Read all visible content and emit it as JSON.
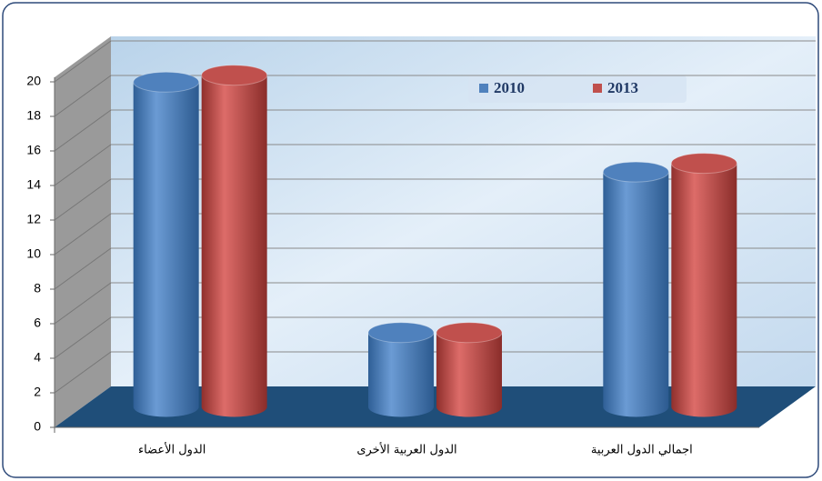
{
  "chart_data": {
    "type": "bar3d",
    "categories": [
      "الدول الأعضاء",
      "الدول العربية الأخرى",
      "اجمالي الدول العربية"
    ],
    "series": [
      {
        "name": "2010",
        "color": "#4f81bd",
        "values": [
          18.8,
          4.3,
          13.6
        ]
      },
      {
        "name": "2013",
        "color": "#c0504d",
        "values": [
          19.2,
          4.3,
          14.1
        ]
      }
    ],
    "ylim": [
      0,
      20
    ],
    "yticks": [
      0,
      2,
      4,
      6,
      8,
      10,
      12,
      14,
      16,
      18,
      20
    ],
    "grid": true,
    "legend": "top-right"
  }
}
